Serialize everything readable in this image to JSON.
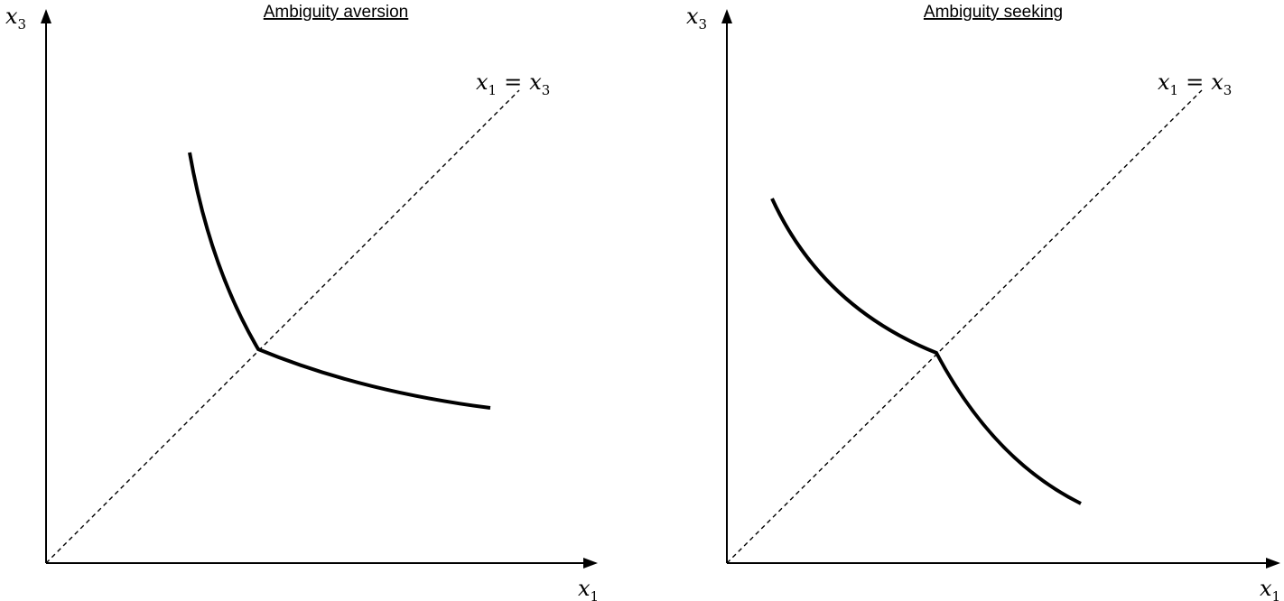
{
  "panels": [
    {
      "title": "Ambiguity aversion",
      "x_axis_label": "x",
      "x_axis_subscript": "1",
      "y_axis_label": "x",
      "y_axis_subscript": "3",
      "diagonal_label": {
        "lhs": "x",
        "lhs_sub": "1",
        "op": "=",
        "rhs": "x",
        "rhs_sub": "3"
      },
      "kink": "convex"
    },
    {
      "title": "Ambiguity seeking",
      "x_axis_label": "x",
      "x_axis_subscript": "1",
      "y_axis_label": "x",
      "y_axis_subscript": "3",
      "diagonal_label": {
        "lhs": "x",
        "lhs_sub": "1",
        "op": "=",
        "rhs": "x",
        "rhs_sub": "3"
      },
      "kink": "concave"
    }
  ]
}
